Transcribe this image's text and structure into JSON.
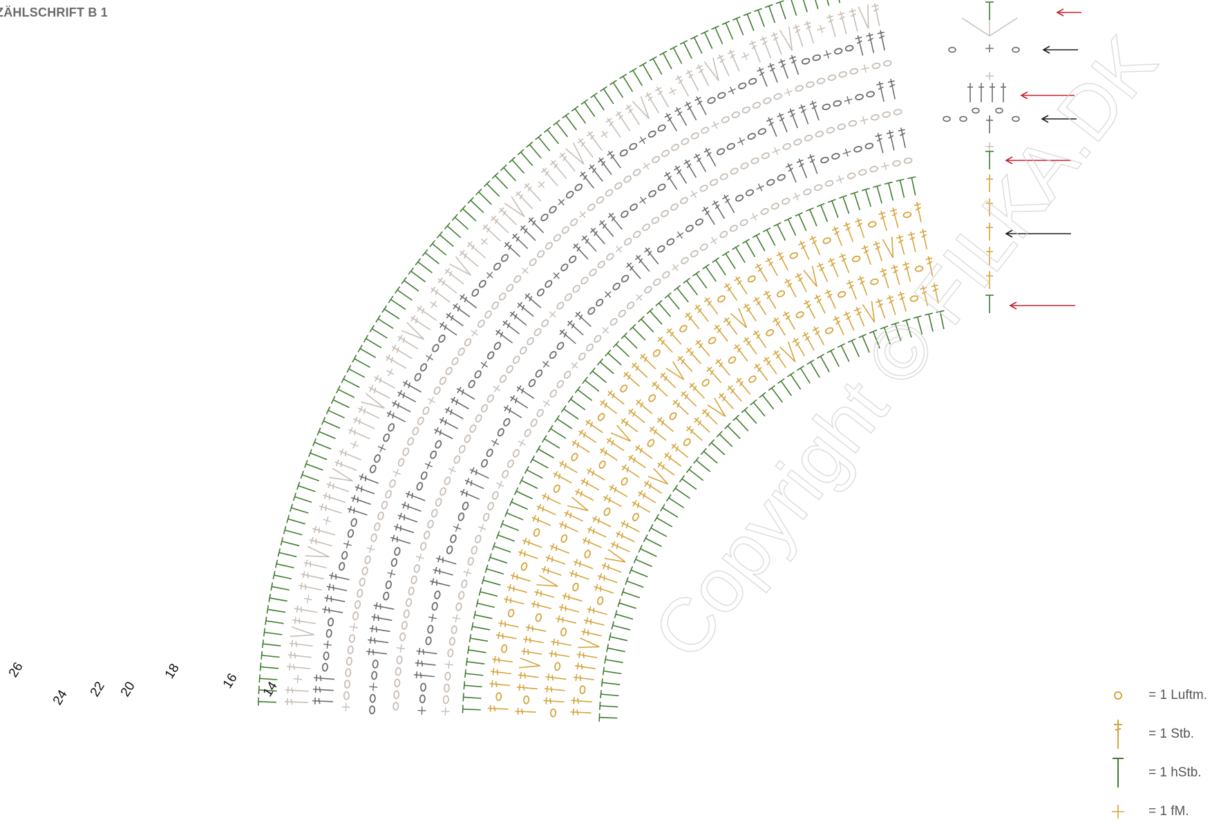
{
  "title": "ZÄHLSCHRIFT B 1",
  "watermark": "Copyright © FILKA.DK",
  "colors": {
    "gold": "#d4a43a",
    "green": "#3f7a2f",
    "light": "#c6bdb6",
    "dark": "#6b6b6b",
    "red_arrow": "#c8202a",
    "black_arrow": "#1a1a1a"
  },
  "row_numbers": [
    "26",
    "24",
    "22",
    "20",
    "18",
    "16",
    "14"
  ],
  "legend": [
    {
      "icon": "chain-stitch-icon",
      "label": "= 1 Luftm."
    },
    {
      "icon": "double-crochet-icon",
      "label": "= 1 Stb."
    },
    {
      "icon": "half-double-crochet-icon",
      "label": "= 1 hStb."
    },
    {
      "icon": "single-crochet-icon",
      "label": "= 1 fM."
    }
  ]
}
